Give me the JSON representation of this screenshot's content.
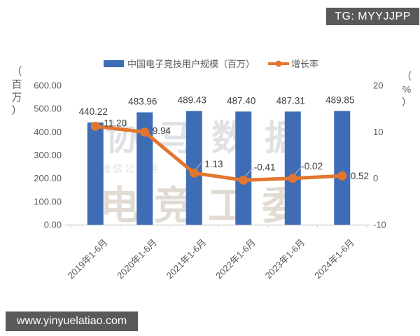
{
  "badge": {
    "text": "TG: MYYJJPP"
  },
  "footer": {
    "url": "www.yinyuelatiao.com"
  },
  "watermarks": {
    "top": "协马数据",
    "sub": "微信公众号",
    "bottom": "电竞工委"
  },
  "chart_data": {
    "type": "combo-bar-line",
    "title": "",
    "categories": [
      "2019年1-6月",
      "2020年1-6月",
      "2021年1-6月",
      "2022年1-6月",
      "2023年1-6月",
      "2024年1-6月"
    ],
    "series": [
      {
        "name": "中国电子竞技用户规模（百万）",
        "type": "bar",
        "axis": "left",
        "color": "#3e6db5",
        "values": [
          440.22,
          483.96,
          489.43,
          487.4,
          487.31,
          489.85
        ],
        "labels": [
          "440.22",
          "483.96",
          "489.43",
          "487.40",
          "487.31",
          "489.85"
        ]
      },
      {
        "name": "增长率",
        "type": "line",
        "axis": "right",
        "color": "#e2762f",
        "values": [
          11.2,
          9.94,
          1.13,
          -0.41,
          -0.02,
          0.52
        ],
        "labels": [
          "11.20",
          "9.94",
          "1.13",
          "-0.41",
          "-0.02",
          "0.52"
        ]
      }
    ],
    "left_axis": {
      "label": "（百万）",
      "min": 0,
      "max": 600,
      "ticks": [
        "600.00",
        "500.00",
        "400.00",
        "300.00",
        "200.00",
        "100.00",
        "0.00"
      ]
    },
    "right_axis": {
      "label": "（%）",
      "min": -10,
      "max": 20,
      "ticks": [
        "20",
        "10",
        "0",
        "-10"
      ]
    },
    "legend_position": "top",
    "grid": false,
    "label_color": "#3f3f3f",
    "tick_color": "#595959",
    "axis_line_color": "#d6d6d6"
  }
}
